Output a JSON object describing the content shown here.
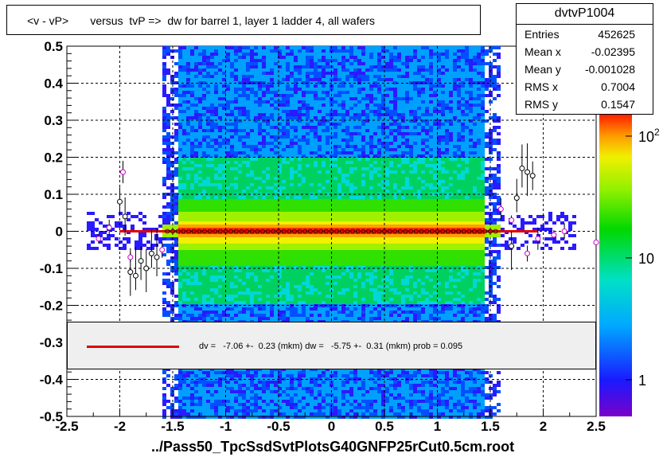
{
  "title": "<v - vP>       versus  tvP =>  dw for barrel 1, layer 1 ladder 4, all wafers",
  "stats": {
    "name": "dvtvP1004",
    "rows": [
      {
        "label": "Entries",
        "value": "452625"
      },
      {
        "label": "Mean x",
        "value": "-0.02395"
      },
      {
        "label": "Mean y",
        "value": "-0.001028"
      },
      {
        "label": "RMS x",
        "value": "0.7004"
      },
      {
        "label": "RMS y",
        "value": "0.1547"
      }
    ]
  },
  "fit_text": "dv =   -7.06 +-  0.23 (mkm) dw =   -5.75 +-  0.31 (mkm) prob = 0.095",
  "x_title": "../Pass50_TpcSsdSvtPlotsG40GNFP25rCut0.5cm.root",
  "colors": {
    "fit": "#e00000",
    "profile_black": "#000000",
    "profile_magenta": "#cc00cc"
  },
  "chart_data": {
    "type": "heatmap",
    "xlim": [
      -2.5,
      2.5
    ],
    "ylim": [
      -0.5,
      0.5
    ],
    "xticks": [
      "-2.5",
      "-2",
      "-1.5",
      "-1",
      "-0.5",
      "0",
      "0.5",
      "1",
      "1.5",
      "2",
      "2.5"
    ],
    "yticks": [
      "-0.5",
      "-0.4",
      "-0.3",
      "-0.2",
      "-0.1",
      "0",
      "0.1",
      "0.2",
      "0.3",
      "0.4",
      "0.5"
    ],
    "grid": true,
    "colorbar": {
      "scale": "log",
      "labels": [
        "1",
        "10",
        "10^2"
      ]
    },
    "fit": {
      "type": "line",
      "y_at_xmin": 0.0,
      "y_at_xmax": 0.0
    },
    "profile_black": [
      {
        "x": -2.0,
        "y": 0.08
      },
      {
        "x": -1.95,
        "y": 0.04
      },
      {
        "x": -1.9,
        "y": -0.11
      },
      {
        "x": -1.85,
        "y": -0.12
      },
      {
        "x": -1.8,
        "y": -0.08
      },
      {
        "x": -1.75,
        "y": -0.1
      },
      {
        "x": -1.7,
        "y": -0.06
      },
      {
        "x": -1.65,
        "y": -0.07
      },
      {
        "x": 1.7,
        "y": -0.04
      },
      {
        "x": 1.75,
        "y": 0.09
      },
      {
        "x": 1.8,
        "y": 0.17
      },
      {
        "x": 1.85,
        "y": 0.16
      },
      {
        "x": 1.9,
        "y": 0.15
      }
    ],
    "profile_magenta": [
      {
        "x": -2.2,
        "y": -0.02
      },
      {
        "x": -2.1,
        "y": 0.01
      },
      {
        "x": -1.97,
        "y": 0.16
      },
      {
        "x": -1.9,
        "y": -0.07
      },
      {
        "x": -1.6,
        "y": -0.05
      },
      {
        "x": 1.6,
        "y": 0.06
      },
      {
        "x": 1.7,
        "y": 0.03
      },
      {
        "x": 1.85,
        "y": -0.06
      },
      {
        "x": 1.95,
        "y": -0.02
      },
      {
        "x": 2.1,
        "y": -0.01
      },
      {
        "x": 2.2,
        "y": 0.0
      },
      {
        "x": 2.5,
        "y": -0.03
      }
    ]
  }
}
